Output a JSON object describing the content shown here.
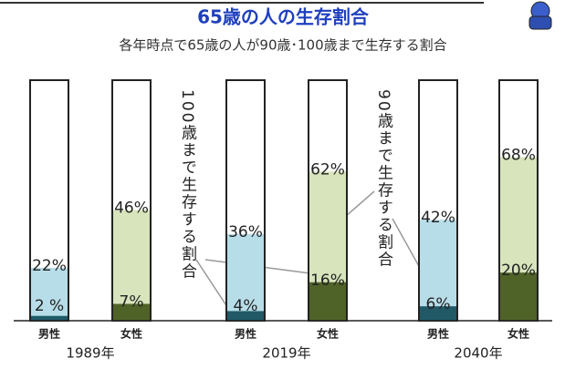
{
  "chart_data": {
    "type": "bar",
    "title": "65歳の人の生存割合",
    "subtitle": "各年時点で65歳の人が90歳･100歳まで生存する割合",
    "categories": [
      "男性",
      "女性",
      "男性",
      "女性",
      "男性",
      "女性"
    ],
    "groups": [
      "1989年",
      "2019年",
      "2040年"
    ],
    "series": [
      {
        "colors": [
          "#b7dde8",
          "#d7e4bc",
          "#b7dde8",
          "#d7e4bc",
          "#b7dde8",
          "#d7e4bc"
        ],
        "values": [
          22,
          46,
          36,
          62,
          42,
          68
        ],
        "value_labels": [
          "22%",
          "46%",
          "36%",
          "62%",
          "42%",
          "68%"
        ]
      },
      {
        "colors": [
          "#215967",
          "#4f6228",
          "#215967",
          "#4f6228",
          "#215967",
          "#4f6228"
        ],
        "values": [
          2,
          7,
          4,
          16,
          6,
          20
        ],
        "value_labels": [
          "2 %",
          "7%",
          "4%",
          "16%",
          "6%",
          "20%"
        ]
      }
    ],
    "annotations": [
      "100歳まで生存する割合",
      "90歳まで生存する割合"
    ],
    "ylim": [
      0,
      100
    ]
  }
}
